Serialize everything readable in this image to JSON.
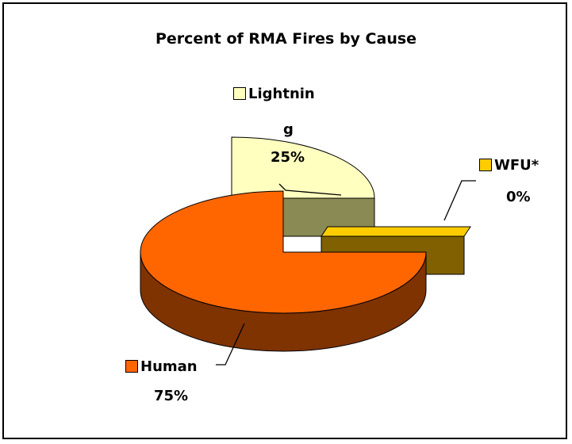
{
  "chart_data": {
    "type": "pie",
    "title": "Percent of RMA Fires by Cause",
    "style": "3d-exploded",
    "legend": "none (slices labeled directly)",
    "slices": [
      {
        "label": "Lightnin g",
        "label_line1": "Lightnin",
        "label_line2": "g",
        "value": 25,
        "pct": "25%",
        "color": "#ffffc0"
      },
      {
        "label": "WFU*",
        "value": 0,
        "pct": "0%",
        "color": "#ffcc00"
      },
      {
        "label": "Human",
        "value": 75,
        "pct": "75%",
        "color": "#ff6600"
      }
    ]
  }
}
